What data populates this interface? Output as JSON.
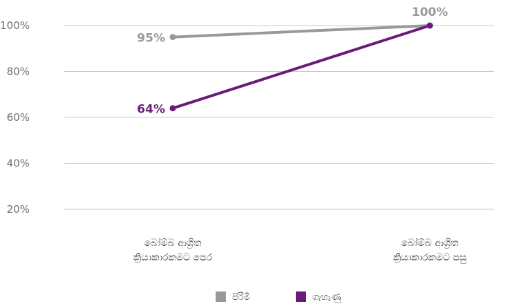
{
  "chart_data": {
    "type": "line",
    "categories": [
      "බෝම්බ ආශ්‍රිත\nක්‍රියාකාරකමට පෙර",
      "බෝම්බ ආශ්‍රිත\nක්‍රියාකාරකමට පසු"
    ],
    "series": [
      {
        "name": "පිරිමි",
        "values": [
          95,
          100
        ],
        "labels": [
          "95%",
          "100%"
        ],
        "color": "#999999"
      },
      {
        "name": "ගැහැණු",
        "values": [
          64,
          100
        ],
        "labels": [
          "64%",
          ""
        ],
        "color": "#6a1b7a"
      }
    ],
    "yticks": [
      "20%",
      "40%",
      "60%",
      "80%",
      "100%"
    ],
    "ytick_values": [
      20,
      40,
      60,
      80,
      100
    ],
    "ylim": [
      20,
      100
    ],
    "grid": true,
    "legend_position": "bottom"
  }
}
